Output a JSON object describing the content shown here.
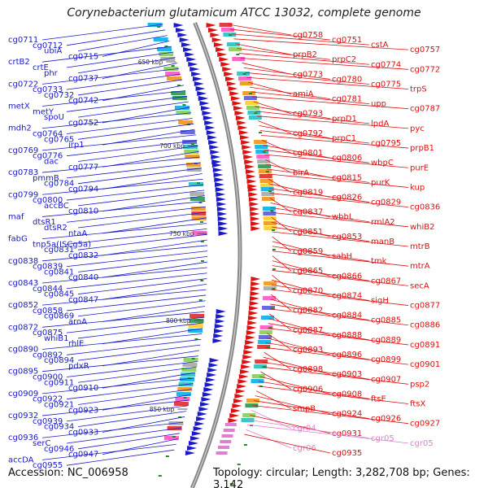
{
  "title": "Corynebacterium glutamicum ATCC 13032, complete genome",
  "footer": {
    "accession": "Accession: NC_006958",
    "topology": "Topology: circular; Length: 3,282,708 bp; Genes: 3,142"
  },
  "colors": {
    "reverse_strand": "#1a1acc",
    "forward_strand": "#e01010",
    "rna_genes": "#e080d0",
    "backbone": "#888888",
    "tick": "#2a8a2a"
  },
  "scale_ticks": [
    "650 kbp",
    "700 kbp",
    "750 kbp",
    "800 kbp",
    "850 kbp"
  ],
  "labels_left": [
    "cg0711",
    "cg0712",
    "ubiA",
    "cg0715",
    "crtB2",
    "crtE",
    "phr",
    "cg0737",
    "cg0722",
    "cg0733",
    "cg0732",
    "cg0742",
    "metX",
    "metY",
    "spoU",
    "cg0752",
    "mdh2",
    "cg0764",
    "cg0765",
    "irp1",
    "cg0769",
    "cg0776",
    "dac",
    "cg0777",
    "cg0783",
    "pmmB",
    "cg0784",
    "cg0794",
    "cg0799",
    "cg0800",
    "accBC",
    "cg0810",
    "maf",
    "dtsR1",
    "dtsR2",
    "ntaA",
    "fabG",
    "tnp5a(ISCg5a)",
    "cg0831",
    "cg0832",
    "cg0838",
    "cg0839",
    "cg0841",
    "cg0840",
    "cg0843",
    "cg0844",
    "cg0845",
    "cg0847",
    "cg0852",
    "cg0858",
    "cg0869",
    "aroA",
    "cg0872",
    "cg0875",
    "whiB1",
    "rhlE",
    "cg0890",
    "cg0892",
    "cg0894",
    "pdxR",
    "cg0895",
    "cg0900",
    "cg0911",
    "cg0910",
    "cg0909",
    "cg0922",
    "cg0921",
    "cg0923",
    "cg0932",
    "cg0939",
    "cg0934",
    "cg0933",
    "cg0936",
    "serC",
    "cg0946",
    "cg0947",
    "accDA",
    "cg0955"
  ],
  "labels_right": [
    "cg0758",
    "cg0751",
    "cstA",
    "cg0757",
    "prpB2",
    "prpC2",
    "cg0774",
    "cg0772",
    "cg0773",
    "cg0780",
    "cg0775",
    "trpS",
    "amiA",
    "cg0781",
    "upp",
    "cg0787",
    "cg0793",
    "prpD1",
    "lpdA",
    "pyc",
    "cg0792",
    "prpC1",
    "cg0795",
    "prpB1",
    "cg0801",
    "cg0806",
    "wbpC",
    "purE",
    "birA",
    "cg0815",
    "purK",
    "kup",
    "cg0819",
    "cg0826",
    "cg0829",
    "cg0836",
    "cg0837",
    "wbbL",
    "rmlA2",
    "whiB2",
    "cg0851",
    "cg0853",
    "manB",
    "mtrB",
    "cg0859",
    "sahH",
    "tmk",
    "mtrA",
    "cg0865",
    "cg0866",
    "cg0867",
    "secA",
    "cg0870",
    "cg0874",
    "sigH",
    "cg0877",
    "cg0882",
    "cg0884",
    "cg0885",
    "cg0886",
    "cg0887",
    "cg0888",
    "cg0889",
    "cg0891",
    "cg0893",
    "cg0896",
    "cg0899",
    "cg0901",
    "cg0898",
    "cg0903",
    "cg0907",
    "psp2",
    "cg0906",
    "cg0908",
    "ftsE",
    "ftsX",
    "smpB",
    "cg0924",
    "cg0926",
    "cg0927",
    "cgr04",
    "cg0931",
    "cgr05",
    "cgr05",
    "cgr06",
    "cg0935"
  ]
}
